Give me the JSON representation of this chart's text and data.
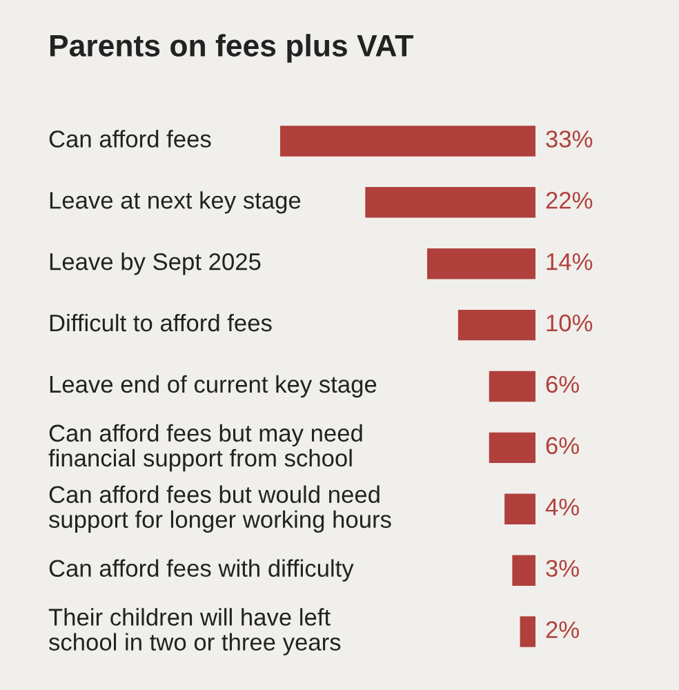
{
  "chart_data": {
    "type": "bar",
    "orientation": "horizontal",
    "title": "Parents on fees plus VAT",
    "categories": [
      "Can afford fees",
      "Leave at next key stage",
      "Leave by Sept 2025",
      "Difficult to afford fees",
      "Leave end of current key stage",
      "Can afford fees but may need\nfinancial support from school",
      "Can afford fees but would need\nsupport for longer working hours",
      "Can afford fees with difficulty",
      "Their children will have left\nschool in two or three years"
    ],
    "values": [
      33,
      22,
      14,
      10,
      6,
      6,
      4,
      3,
      2
    ],
    "value_labels": [
      "33%",
      "22%",
      "14%",
      "10%",
      "6%",
      "6%",
      "4%",
      "3%",
      "2%"
    ],
    "color": "#b0403c"
  }
}
